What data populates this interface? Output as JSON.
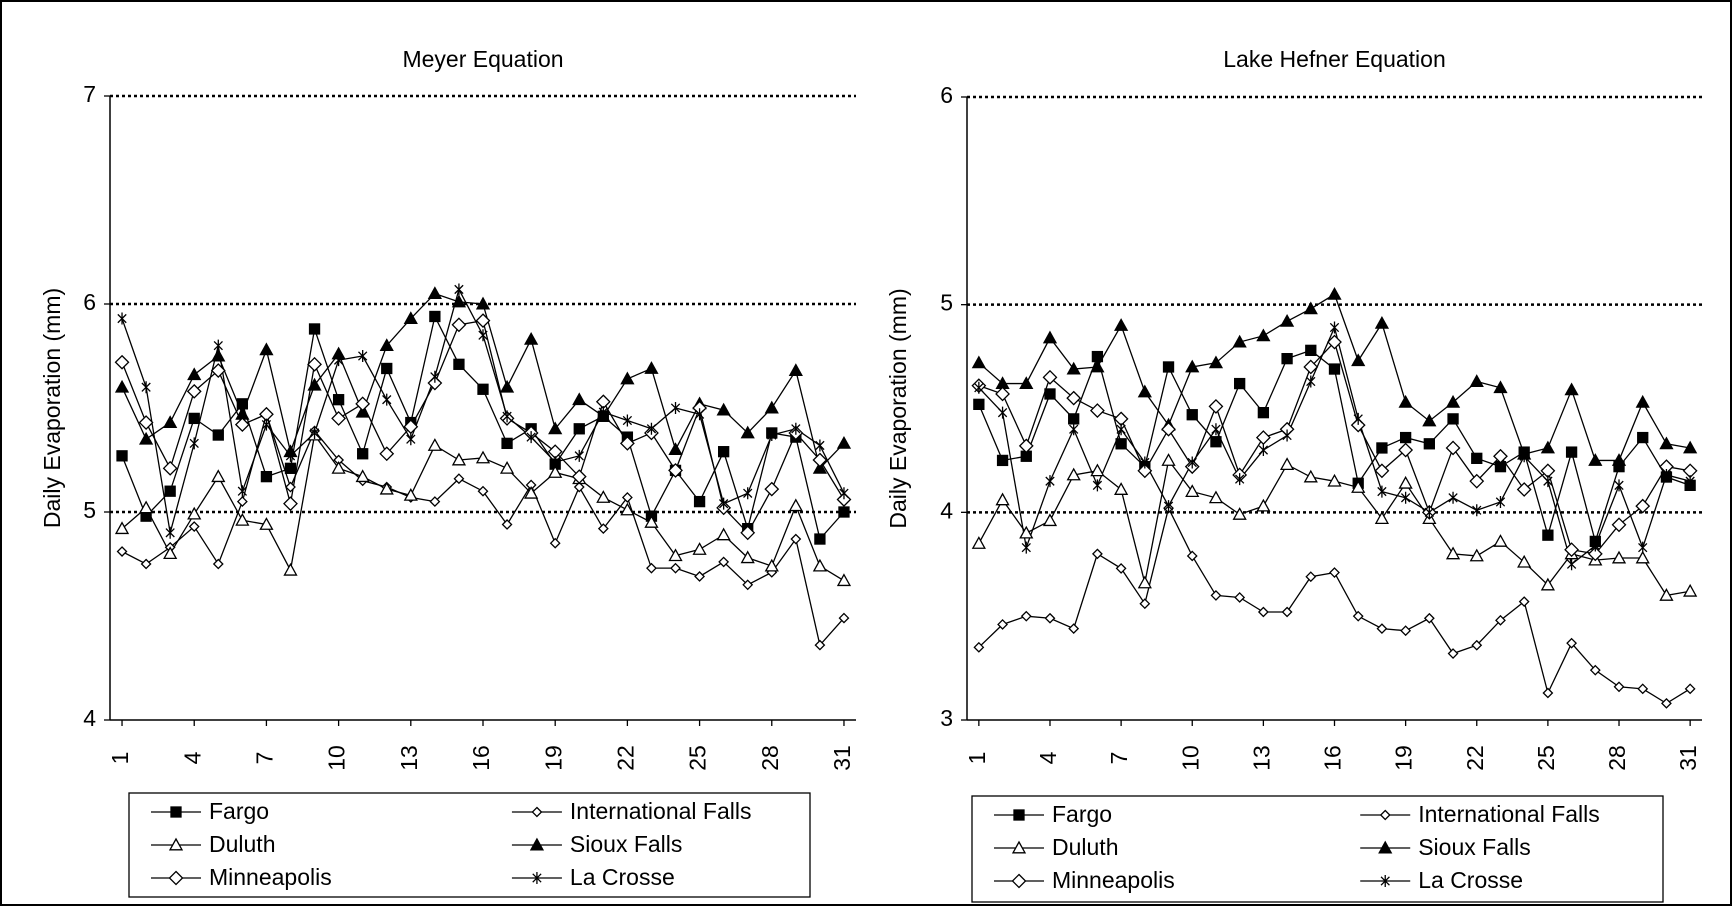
{
  "chart_data": [
    {
      "type": "line",
      "title": "Meyer Equation",
      "y_label": "Daily Evaporation (mm)",
      "x": [
        1,
        2,
        3,
        4,
        5,
        6,
        7,
        8,
        9,
        10,
        11,
        12,
        13,
        14,
        15,
        16,
        17,
        18,
        19,
        20,
        21,
        22,
        23,
        24,
        25,
        26,
        27,
        28,
        29,
        30,
        31
      ],
      "xlim": [
        0.5,
        31.5
      ],
      "xticks": [
        1,
        4,
        7,
        10,
        13,
        16,
        19,
        22,
        25,
        28,
        31
      ],
      "ylim": [
        4,
        7
      ],
      "yticks": [
        4,
        5,
        6,
        7
      ],
      "grid": true,
      "series": [
        {
          "name": "Fargo",
          "color": "#000000",
          "marker": "filled-square",
          "values": [
            5.27,
            4.98,
            5.1,
            5.45,
            5.37,
            5.52,
            5.17,
            5.21,
            5.88,
            5.54,
            5.28,
            5.69,
            5.43,
            5.94,
            5.71,
            5.59,
            5.33,
            5.4,
            5.23,
            5.4,
            5.46,
            5.36,
            4.98,
            5.2,
            5.05,
            5.29,
            4.92,
            5.38,
            5.36,
            4.87,
            5.0
          ]
        },
        {
          "name": "International Falls",
          "color": "#000000",
          "marker": "small-open-diamond",
          "values": [
            4.81,
            4.75,
            4.83,
            4.93,
            4.75,
            5.05,
            5.47,
            5.12,
            5.39,
            5.25,
            5.15,
            5.12,
            5.07,
            5.05,
            5.16,
            5.1,
            4.94,
            5.13,
            4.85,
            5.12,
            4.92,
            5.07,
            4.73,
            4.73,
            4.69,
            4.76,
            4.65,
            4.71,
            4.87,
            4.36,
            4.49
          ]
        },
        {
          "name": "Duluth",
          "color": "#000000",
          "marker": "open-triangle",
          "values": [
            4.92,
            5.02,
            4.8,
            4.99,
            5.17,
            4.96,
            4.94,
            4.72,
            5.37,
            5.21,
            5.17,
            5.11,
            5.08,
            5.32,
            5.25,
            5.26,
            5.21,
            5.09,
            5.19,
            5.16,
            5.07,
            5.01,
            4.95,
            4.79,
            4.82,
            4.89,
            4.78,
            4.74,
            5.03,
            4.74,
            4.67
          ]
        },
        {
          "name": "Sioux Falls",
          "color": "#000000",
          "marker": "filled-triangle",
          "values": [
            5.6,
            5.35,
            5.43,
            5.66,
            5.75,
            5.47,
            5.78,
            5.29,
            5.61,
            5.76,
            5.48,
            5.8,
            5.93,
            6.05,
            6.01,
            6.0,
            5.6,
            5.83,
            5.4,
            5.54,
            5.46,
            5.64,
            5.69,
            5.3,
            5.52,
            5.49,
            5.38,
            5.5,
            5.68,
            5.21,
            5.33
          ]
        },
        {
          "name": "Minneapolis",
          "color": "#000000",
          "marker": "open-diamond",
          "values": [
            5.72,
            5.43,
            5.21,
            5.58,
            5.68,
            5.42,
            5.47,
            5.04,
            5.71,
            5.45,
            5.52,
            5.28,
            5.41,
            5.62,
            5.9,
            5.92,
            5.45,
            5.38,
            5.29,
            5.17,
            5.53,
            5.33,
            5.38,
            5.2,
            5.5,
            5.02,
            4.9,
            5.11,
            5.38,
            5.25,
            5.06
          ]
        },
        {
          "name": "La Crosse",
          "color": "#000000",
          "marker": "star",
          "values": [
            5.93,
            5.6,
            4.9,
            5.33,
            5.8,
            5.1,
            5.42,
            5.27,
            5.38,
            5.73,
            5.75,
            5.54,
            5.35,
            5.65,
            6.07,
            5.85,
            5.46,
            5.36,
            5.24,
            5.27,
            5.48,
            5.44,
            5.4,
            5.5,
            5.47,
            5.04,
            5.09,
            5.37,
            5.4,
            5.32,
            5.09
          ]
        }
      ]
    },
    {
      "type": "line",
      "title": "Lake Hefner Equation",
      "y_label": "Daily Evaporation (mm)",
      "x": [
        1,
        2,
        3,
        4,
        5,
        6,
        7,
        8,
        9,
        10,
        11,
        12,
        13,
        14,
        15,
        16,
        17,
        18,
        19,
        20,
        21,
        22,
        23,
        24,
        25,
        26,
        27,
        28,
        29,
        30,
        31
      ],
      "xlim": [
        0.5,
        31.5
      ],
      "xticks": [
        1,
        4,
        7,
        10,
        13,
        16,
        19,
        22,
        25,
        28,
        31
      ],
      "ylim": [
        3,
        6
      ],
      "yticks": [
        3,
        4,
        5,
        6
      ],
      "grid": true,
      "series": [
        {
          "name": "Fargo",
          "color": "#000000",
          "marker": "filled-square",
          "values": [
            4.52,
            4.25,
            4.27,
            4.57,
            4.45,
            4.75,
            4.33,
            4.22,
            4.7,
            4.47,
            4.34,
            4.62,
            4.48,
            4.74,
            4.78,
            4.69,
            4.14,
            4.31,
            4.36,
            4.33,
            4.45,
            4.26,
            4.22,
            4.29,
            3.89,
            4.29,
            3.86,
            4.22,
            4.36,
            4.17,
            4.13
          ]
        },
        {
          "name": "International Falls",
          "color": "#000000",
          "marker": "small-open-diamond",
          "values": [
            3.35,
            3.46,
            3.5,
            3.49,
            3.44,
            3.8,
            3.73,
            3.56,
            4.02,
            3.79,
            3.6,
            3.59,
            3.52,
            3.52,
            3.69,
            3.71,
            3.5,
            3.44,
            3.43,
            3.49,
            3.32,
            3.36,
            3.48,
            3.57,
            3.13,
            3.37,
            3.24,
            3.16,
            3.15,
            3.08,
            3.15
          ]
        },
        {
          "name": "Duluth",
          "color": "#000000",
          "marker": "open-triangle",
          "values": [
            3.85,
            4.06,
            3.9,
            3.96,
            4.18,
            4.2,
            4.11,
            3.66,
            4.25,
            4.1,
            4.07,
            3.99,
            4.03,
            4.23,
            4.17,
            4.15,
            4.12,
            3.97,
            4.14,
            3.97,
            3.8,
            3.79,
            3.86,
            3.76,
            3.65,
            3.8,
            3.77,
            3.78,
            3.78,
            3.6,
            3.62
          ]
        },
        {
          "name": "Sioux Falls",
          "color": "#000000",
          "marker": "filled-triangle",
          "values": [
            4.72,
            4.62,
            4.62,
            4.84,
            4.69,
            4.7,
            4.9,
            4.58,
            4.42,
            4.7,
            4.72,
            4.82,
            4.85,
            4.92,
            4.98,
            5.05,
            4.73,
            4.91,
            4.53,
            4.44,
            4.53,
            4.63,
            4.6,
            4.28,
            4.31,
            4.59,
            4.25,
            4.25,
            4.53,
            4.33,
            4.31
          ]
        },
        {
          "name": "Minneapolis",
          "color": "#000000",
          "marker": "open-diamond",
          "values": [
            4.61,
            4.57,
            4.32,
            4.65,
            4.55,
            4.49,
            4.45,
            4.2,
            4.4,
            4.22,
            4.51,
            4.18,
            4.36,
            4.4,
            4.7,
            4.82,
            4.42,
            4.2,
            4.3,
            4.0,
            4.31,
            4.15,
            4.27,
            4.11,
            4.2,
            3.82,
            3.8,
            3.94,
            4.03,
            4.22,
            4.2
          ]
        },
        {
          "name": "La Crosse",
          "color": "#000000",
          "marker": "star",
          "values": [
            4.6,
            4.48,
            3.83,
            4.15,
            4.4,
            4.13,
            4.4,
            4.24,
            4.03,
            4.24,
            4.4,
            4.16,
            4.3,
            4.37,
            4.63,
            4.89,
            4.45,
            4.1,
            4.07,
            4.0,
            4.07,
            4.01,
            4.05,
            4.27,
            4.15,
            3.75,
            3.84,
            4.13,
            3.83,
            4.18,
            4.15
          ]
        }
      ]
    }
  ]
}
